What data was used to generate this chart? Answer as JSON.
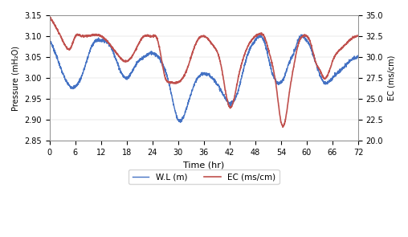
{
  "title": "",
  "xlabel": "Time (hr)",
  "ylabel_left": "Pressure (mH₂O)",
  "ylabel_right": "EC (ms/cm)",
  "xlim": [
    0,
    72
  ],
  "ylim_left": [
    2.85,
    3.15
  ],
  "ylim_right": [
    20.0,
    35.0
  ],
  "xticks": [
    0,
    6,
    12,
    18,
    24,
    30,
    36,
    42,
    48,
    54,
    60,
    66,
    72
  ],
  "yticks_left": [
    2.85,
    2.9,
    2.95,
    3.0,
    3.05,
    3.1,
    3.15
  ],
  "yticks_right": [
    20.0,
    22.5,
    25.0,
    27.5,
    30.0,
    32.5,
    35.0
  ],
  "line_color_wl": "#4472C4",
  "line_color_ec": "#C0504D",
  "legend_wl": "W.L (m)",
  "legend_ec": "EC (ms/cm)",
  "background_color": "#ffffff",
  "figsize": [
    5.08,
    2.95
  ],
  "dpi": 100
}
